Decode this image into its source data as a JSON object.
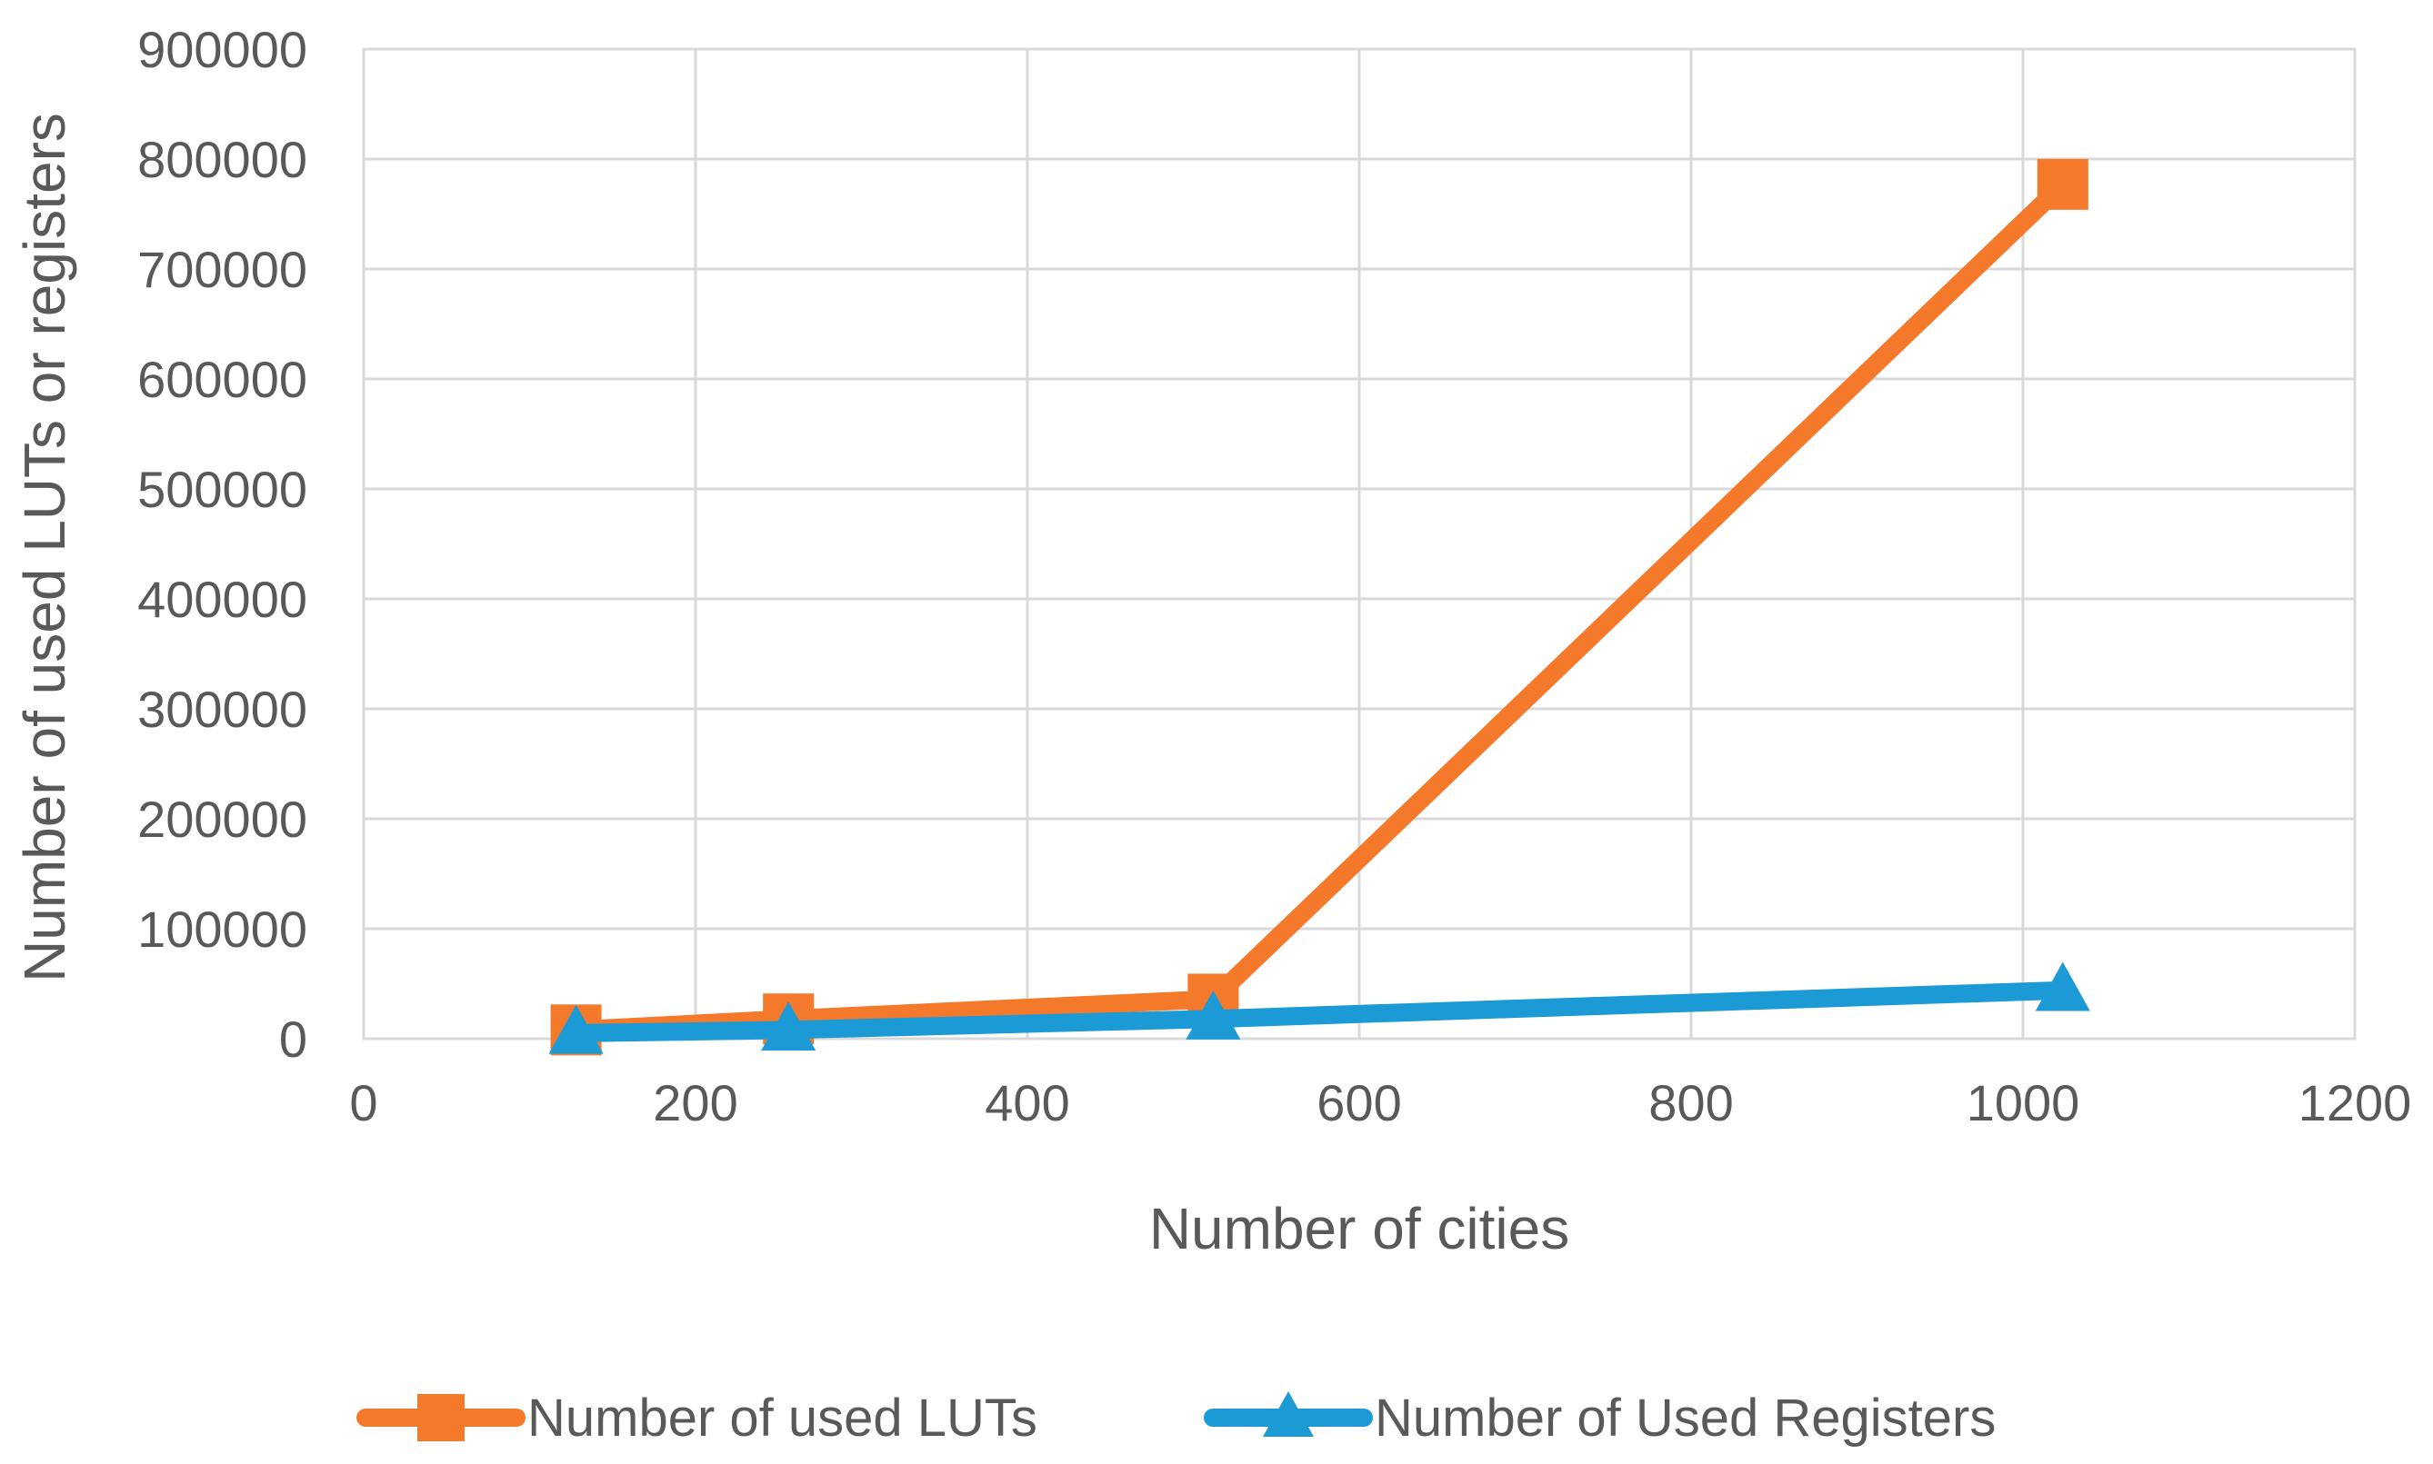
{
  "chart_data": {
    "type": "line",
    "title": "",
    "xlabel": "Number of cities",
    "ylabel": "Number of used LUTs or registers",
    "xlim": [
      0,
      1200
    ],
    "ylim": [
      0,
      900000
    ],
    "x_ticks": [
      0,
      200,
      400,
      600,
      800,
      1000,
      1200
    ],
    "x_tick_labels": [
      "0",
      "200",
      "400",
      "600",
      "800",
      "1000",
      "1200"
    ],
    "y_ticks": [
      0,
      100000,
      200000,
      300000,
      400000,
      500000,
      600000,
      700000,
      800000,
      900000
    ],
    "y_tick_labels": [
      "0",
      "100000",
      "200000",
      "300000",
      "400000",
      "500000",
      "600000",
      "700000",
      "800000",
      "900000"
    ],
    "grid": true,
    "legend_position": "bottom",
    "series": [
      {
        "name": "Number of used LUTs",
        "color": "#F5792A",
        "marker": "square",
        "points": [
          {
            "x": 128,
            "y": 8000
          },
          {
            "x": 256,
            "y": 18000
          },
          {
            "x": 512,
            "y": 36000
          },
          {
            "x": 1024,
            "y": 777000
          }
        ]
      },
      {
        "name": "Number of Used Registers",
        "color": "#1B9AD6",
        "marker": "triangle",
        "points": [
          {
            "x": 128,
            "y": 5000
          },
          {
            "x": 256,
            "y": 8000
          },
          {
            "x": 512,
            "y": 18000
          },
          {
            "x": 1024,
            "y": 44000
          }
        ]
      }
    ]
  }
}
